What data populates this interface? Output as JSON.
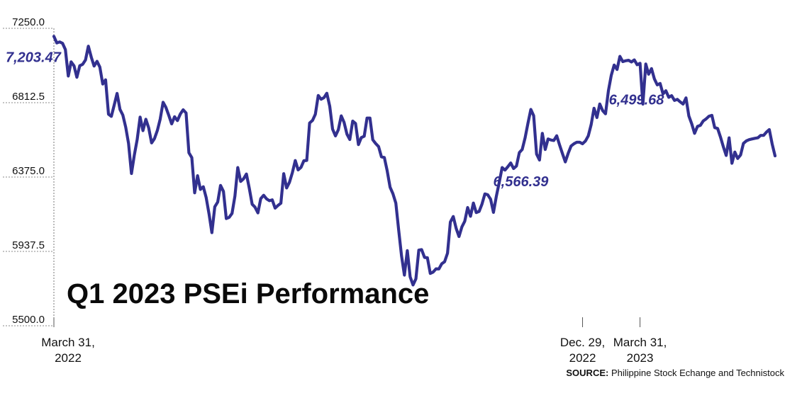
{
  "chart_data": {
    "type": "line",
    "title": "Q1 2023 PSEi Performance",
    "source_label": "SOURCE:",
    "source_text": "Philippine Stock Echange and Technistock",
    "ylim": [
      5500.0,
      7250.0
    ],
    "y_ticks": [
      "7250.0",
      "6812.5",
      "6375.0",
      "5937.5",
      "5500.0"
    ],
    "y_tick_values": [
      7250.0,
      6812.5,
      6375.0,
      5937.5,
      5500.0
    ],
    "x_ticks": [
      {
        "index": 0,
        "lines": [
          "March 31,",
          "2022"
        ]
      },
      {
        "index": 184,
        "lines": [
          "Dec. 29,",
          "2022"
        ]
      },
      {
        "index": 204,
        "lines": [
          "March 31,",
          "2023"
        ]
      }
    ],
    "annotations": [
      {
        "index": 0,
        "text": "7,203.47"
      },
      {
        "index": 184,
        "text": "6,566.39"
      },
      {
        "index": 204,
        "text": "6,499.68"
      }
    ],
    "grid": false,
    "line_color": "#32308f",
    "series": [
      {
        "values": [
          7203,
          7164,
          7170,
          7162,
          7125,
          6969,
          7053,
          7029,
          6962,
          7030,
          7038,
          7064,
          7145,
          7081,
          7028,
          7056,
          7022,
          6922,
          6947,
          6745,
          6732,
          6799,
          6867,
          6773,
          6740,
          6668,
          6572,
          6396,
          6506,
          6597,
          6728,
          6648,
          6715,
          6664,
          6576,
          6601,
          6649,
          6716,
          6815,
          6784,
          6737,
          6688,
          6730,
          6707,
          6746,
          6771,
          6752,
          6518,
          6489,
          6282,
          6383,
          6302,
          6318,
          6255,
          6158,
          6048,
          6200,
          6228,
          6326,
          6291,
          6131,
          6138,
          6161,
          6263,
          6431,
          6349,
          6364,
          6393,
          6310,
          6215,
          6198,
          6164,
          6248,
          6268,
          6247,
          6236,
          6241,
          6192,
          6208,
          6221,
          6395,
          6311,
          6344,
          6401,
          6472,
          6417,
          6432,
          6471,
          6473,
          6693,
          6708,
          6744,
          6855,
          6833,
          6842,
          6868,
          6792,
          6657,
          6617,
          6653,
          6735,
          6697,
          6627,
          6596,
          6704,
          6690,
          6566,
          6607,
          6615,
          6722,
          6722,
          6594,
          6572,
          6554,
          6494,
          6490,
          6412,
          6315,
          6277,
          6222,
          6064,
          5910,
          5798,
          5942,
          5788,
          5740,
          5776,
          5945,
          5948,
          5902,
          5900,
          5808,
          5816,
          5835,
          5834,
          5865,
          5877,
          5927,
          6110,
          6143,
          6073,
          6025,
          6082,
          6115,
          6196,
          6144,
          6222,
          6166,
          6173,
          6216,
          6276,
          6271,
          6244,
          6167,
          6263,
          6343,
          6431,
          6416,
          6436,
          6458,
          6425,
          6440,
          6519,
          6537,
          6606,
          6691,
          6773,
          6736,
          6510,
          6475,
          6632,
          6537,
          6599,
          6593,
          6590,
          6618,
          6564,
          6513,
          6464,
          6515,
          6557,
          6571,
          6580,
          6580,
          6571,
          6587,
          6617,
          6684,
          6780,
          6725,
          6805,
          6766,
          6747,
          6883,
          6973,
          7034,
          7008,
          7085,
          7054,
          7059,
          7062,
          7052,
          7064,
          7036,
          7044,
          6804,
          7040,
          6980,
          7013,
          6953,
          6917,
          6926,
          6864,
          6883,
          6844,
          6854,
          6826,
          6832,
          6817,
          6804,
          6841,
          6735,
          6688,
          6632,
          6673,
          6679,
          6705,
          6717,
          6733,
          6738,
          6666,
          6661,
          6611,
          6553,
          6502,
          6606,
          6456,
          6522,
          6484,
          6505,
          6573,
          6588,
          6595,
          6599,
          6603,
          6606,
          6620,
          6620,
          6639,
          6654,
          6570,
          6499.68
        ]
      }
    ]
  }
}
